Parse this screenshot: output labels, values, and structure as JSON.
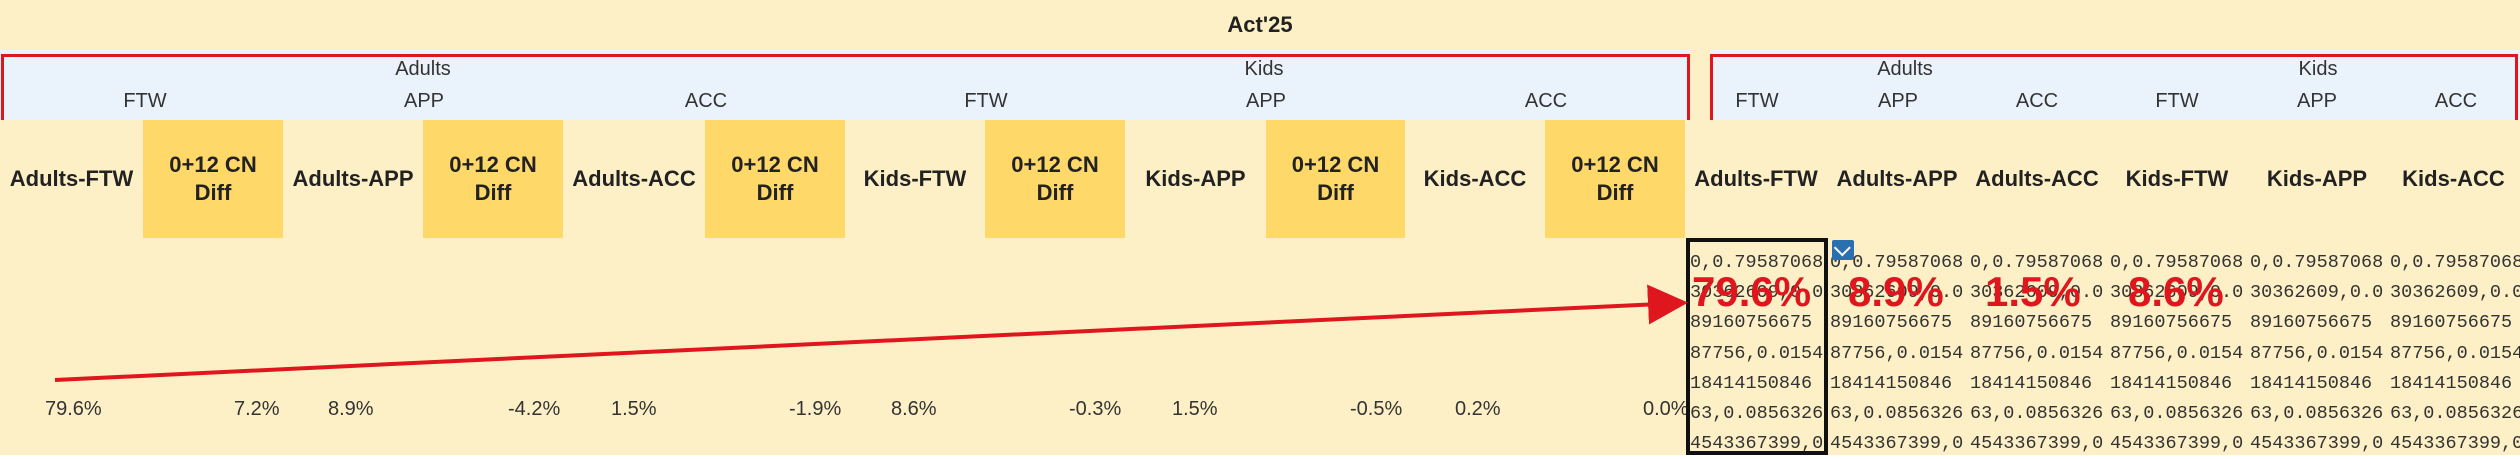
{
  "title": "Act'25",
  "groups_left": [
    {
      "label": "Adults",
      "subs": [
        "FTW",
        "APP",
        "ACC"
      ]
    },
    {
      "label": "Kids",
      "subs": [
        "FTW",
        "APP",
        "ACC"
      ]
    }
  ],
  "groups_right": [
    {
      "label": "Adults",
      "subs": [
        "FTW",
        "APP",
        "ACC"
      ]
    },
    {
      "label": "Kids",
      "subs": [
        "FTW",
        "APP",
        "ACC"
      ]
    }
  ],
  "headers": [
    "Adults-FTW",
    "0+12 CN Diff",
    "Adults-APP",
    "0+12 CN Diff",
    "Adults-ACC",
    "0+12 CN Diff",
    "Kids-FTW",
    "0+12 CN Diff",
    "Kids-APP",
    "0+12 CN Diff",
    "Kids-ACC",
    "0+12 CN Diff",
    "Adults-FTW",
    "Adults-APP",
    "Adults-ACC",
    "Kids-FTW",
    "Kids-APP",
    "Kids-ACC"
  ],
  "values_row": [
    "79.6%",
    "7.2%",
    "8.9%",
    "-4.2%",
    "1.5%",
    "-1.9%",
    "8.6%",
    "-0.3%",
    "1.5%",
    "-0.5%",
    "0.2%",
    "0.0%"
  ],
  "dump_lines": [
    "0,0.79587068",
    "30362609,0.0",
    "89160756675",
    "87756,0.0154",
    "18414150846",
    "63,0.0856326",
    "4543367399,0"
  ],
  "highlights": [
    "79.6%",
    "8.9%",
    "1.5%",
    "8.6%"
  ],
  "colors": {
    "pale": "#fdf0c6",
    "gold": "#fed869",
    "band": "#eaf3fb",
    "red": "#e0161e"
  }
}
